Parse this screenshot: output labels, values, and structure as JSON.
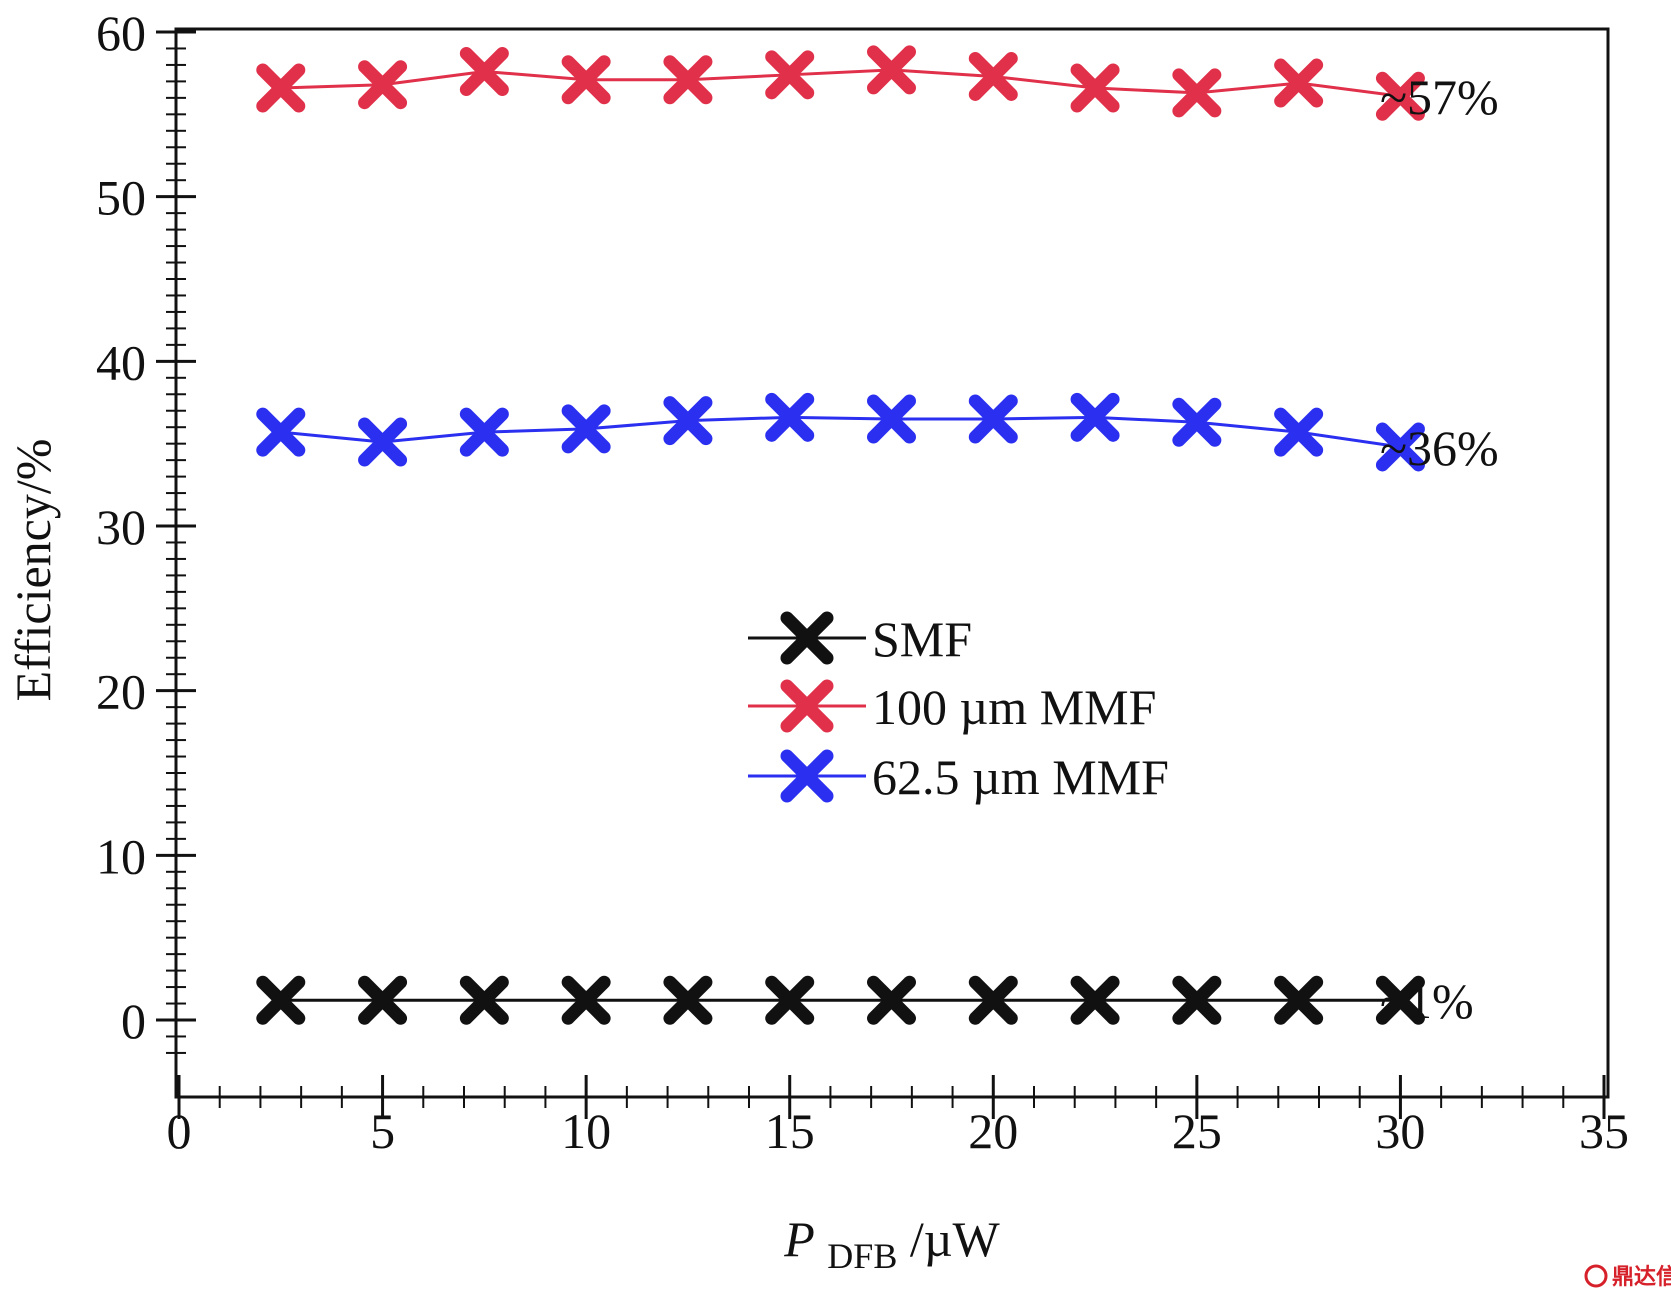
{
  "chart_data": {
    "type": "line",
    "xlabel_main": "P",
    "xlabel_sub": "DFB",
    "xlabel_unit": "/µW",
    "ylabel": "Efficiency/%",
    "xlim": [
      0,
      35
    ],
    "ylim": [
      -2,
      60
    ],
    "x_ticks": [
      0,
      5,
      10,
      15,
      20,
      25,
      30,
      35
    ],
    "y_ticks": [
      0,
      10,
      20,
      30,
      40,
      50,
      60
    ],
    "x_tick_labels": [
      "0",
      "5",
      "10",
      "15",
      "20",
      "25",
      "30",
      "35"
    ],
    "y_tick_labels": [
      "0",
      "10",
      "20",
      "30",
      "40",
      "50",
      "60"
    ],
    "x": [
      2.5,
      5,
      7.5,
      10,
      12.5,
      15,
      17.5,
      20,
      22.5,
      25,
      27.5,
      30
    ],
    "series": [
      {
        "name": "SMF",
        "color": "#111111",
        "values": [
          1.2,
          1.2,
          1.2,
          1.2,
          1.2,
          1.2,
          1.2,
          1.2,
          1.2,
          1.2,
          1.2,
          1.2
        ]
      },
      {
        "name": "100 µm MMF",
        "color": "#e0304a",
        "values": [
          56.6,
          56.8,
          57.6,
          57.1,
          57.1,
          57.4,
          57.7,
          57.3,
          56.6,
          56.3,
          56.9,
          56.1
        ]
      },
      {
        "name": "62.5 µm MMF",
        "color": "#2b2ff0",
        "values": [
          35.7,
          35.1,
          35.7,
          35.9,
          36.4,
          36.6,
          36.5,
          36.5,
          36.6,
          36.3,
          35.7,
          34.8
        ]
      }
    ],
    "annotations": [
      {
        "text": "~57%",
        "series": 1
      },
      {
        "text": "~36%",
        "series": 2
      },
      {
        "text": "~1%",
        "series": 0
      }
    ],
    "grid": false,
    "legend_position": "center-right"
  },
  "watermark": {
    "text": "鼎达信"
  }
}
